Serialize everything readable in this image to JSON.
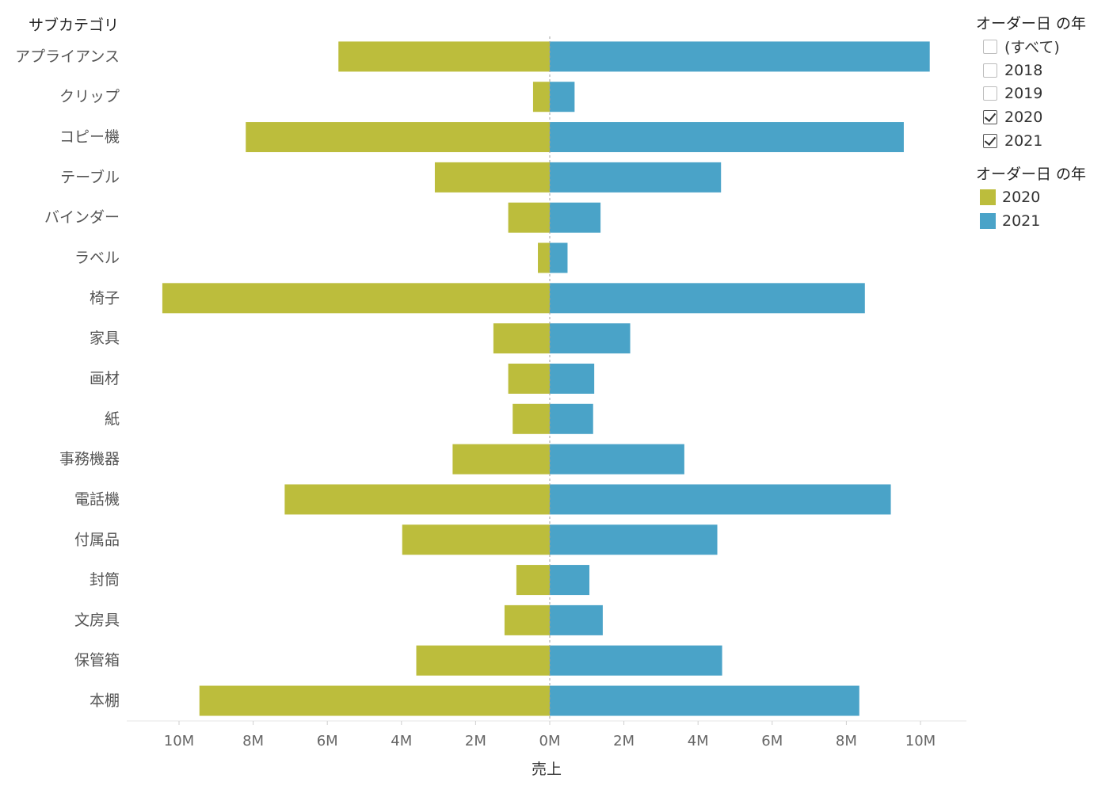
{
  "chart_data": {
    "type": "bar",
    "orientation": "horizontal-diverging",
    "row_header": "サブカテゴリ",
    "xlabel": "売上",
    "categories": [
      "アプライアンス",
      "クリップ",
      "コピー機",
      "テーブル",
      "バインダー",
      "ラベル",
      "椅子",
      "家具",
      "画材",
      "紙",
      "事務機器",
      "電話機",
      "付属品",
      "封筒",
      "文房具",
      "保管箱",
      "本棚"
    ],
    "series": [
      {
        "name": "2020",
        "side": "left",
        "color": "#BCBD3C",
        "values": [
          5700000,
          450000,
          8200000,
          3100000,
          1120000,
          320000,
          10450000,
          1520000,
          1120000,
          1000000,
          2620000,
          7150000,
          3980000,
          900000,
          1220000,
          3600000,
          9450000
        ]
      },
      {
        "name": "2021",
        "side": "right",
        "color": "#4AA3C8",
        "values": [
          10250000,
          670000,
          9550000,
          4620000,
          1370000,
          480000,
          8500000,
          2170000,
          1200000,
          1170000,
          3630000,
          9200000,
          4520000,
          1070000,
          1430000,
          4650000,
          8350000
        ]
      }
    ],
    "xlim": [
      -11300000,
      11300000
    ],
    "ticks": [
      {
        "value": -10000000,
        "label": "10M"
      },
      {
        "value": -8000000,
        "label": "8M"
      },
      {
        "value": -6000000,
        "label": "6M"
      },
      {
        "value": -4000000,
        "label": "4M"
      },
      {
        "value": -2000000,
        "label": "2M"
      },
      {
        "value": 0,
        "label": "0M"
      },
      {
        "value": 2000000,
        "label": "2M"
      },
      {
        "value": 4000000,
        "label": "4M"
      },
      {
        "value": 6000000,
        "label": "6M"
      },
      {
        "value": 8000000,
        "label": "8M"
      },
      {
        "value": 10000000,
        "label": "10M"
      }
    ],
    "grid": false,
    "zero_line": "dashed"
  },
  "filter": {
    "title": "オーダー日 の年",
    "items": [
      {
        "label": "(すべて)",
        "checked": false
      },
      {
        "label": "2018",
        "checked": false
      },
      {
        "label": "2019",
        "checked": false
      },
      {
        "label": "2020",
        "checked": true
      },
      {
        "label": "2021",
        "checked": true
      }
    ]
  },
  "legend": {
    "title": "オーダー日 の年",
    "items": [
      {
        "label": "2020",
        "color": "#BCBD3C"
      },
      {
        "label": "2021",
        "color": "#4AA3C8"
      }
    ]
  }
}
